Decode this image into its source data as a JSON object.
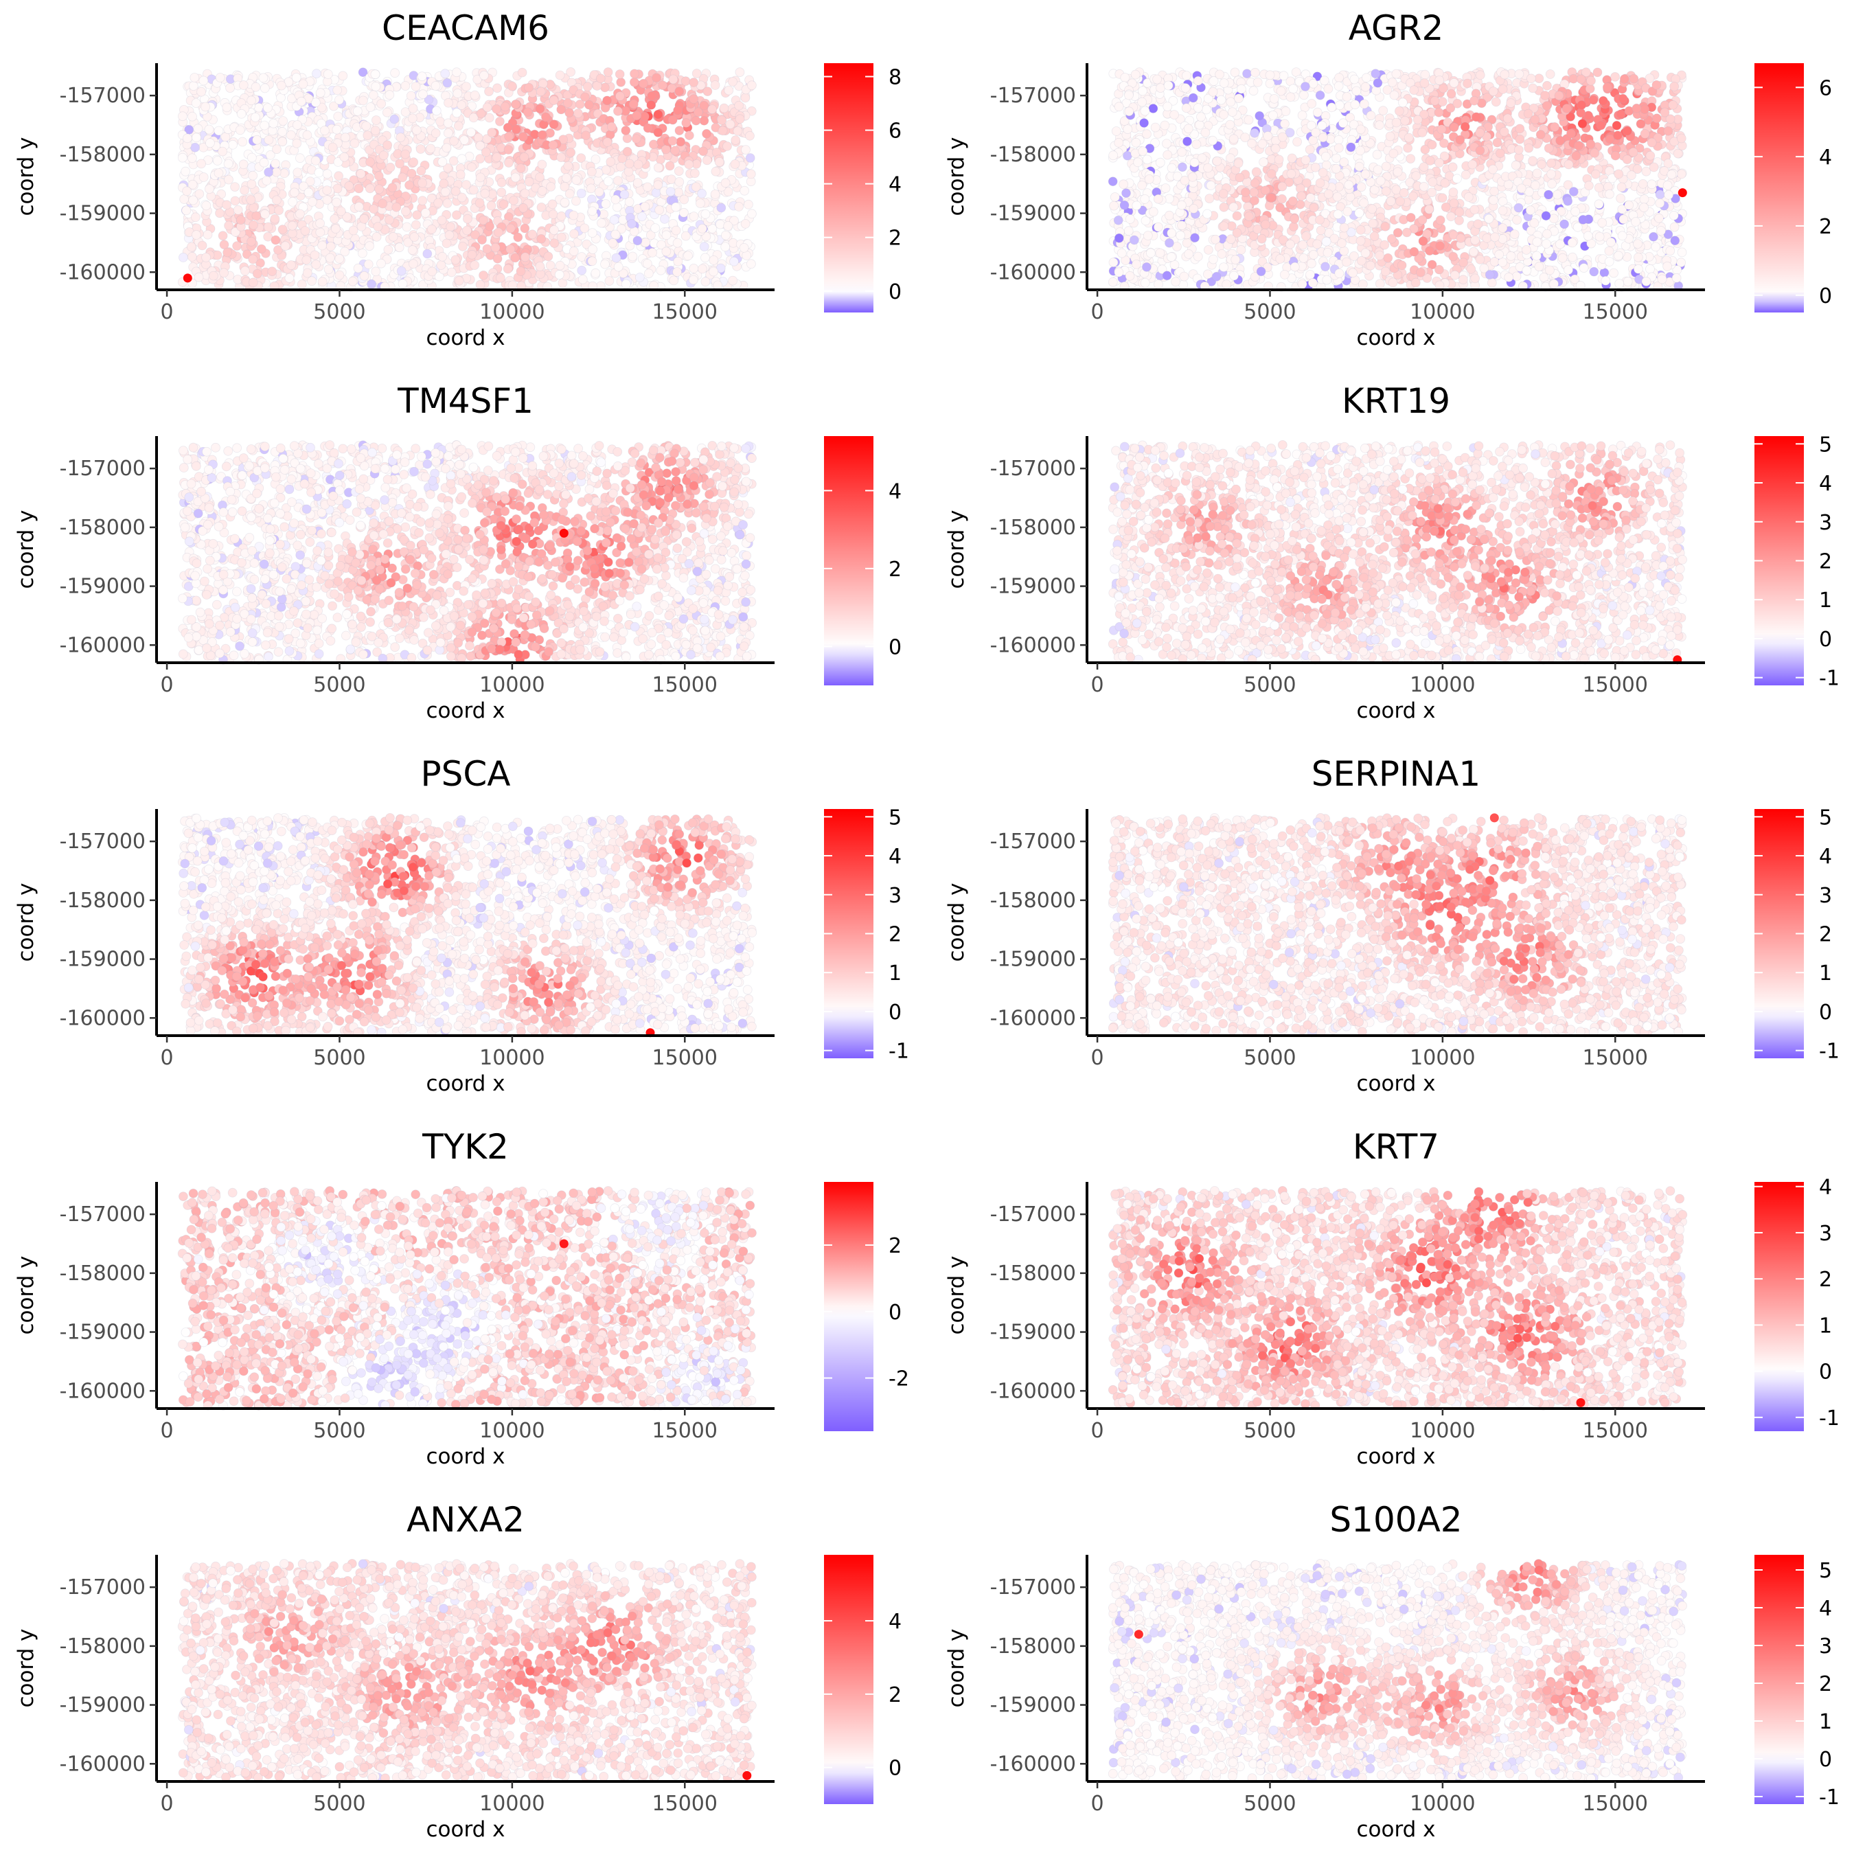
{
  "figure": {
    "background": "#ffffff"
  },
  "colors": {
    "high": "#ff0000",
    "mid": "#ffffff",
    "low": "#7f5fff"
  },
  "chart_data": [
    {
      "type": "scatter",
      "title": "CEACAM6",
      "xlabel": "coord x",
      "ylabel": "coord y",
      "xlim": [
        -300,
        17600
      ],
      "ylim": [
        -160300,
        -156450
      ],
      "x_ticks": [
        0,
        5000,
        10000,
        15000
      ],
      "x_tick_labels": [
        "0",
        "5000",
        "10000",
        "15000"
      ],
      "y_ticks": [
        -157000,
        -158000,
        -159000,
        -160000
      ],
      "y_tick_labels": [
        "-157000",
        "-158000",
        "-159000",
        "-160000"
      ],
      "color_scale": {
        "min": -0.8,
        "max": 8.5,
        "ticks": [
          0,
          2,
          4,
          6,
          8
        ],
        "labels": [
          "0",
          "2",
          "4",
          "6",
          "8"
        ]
      },
      "points_summary": {
        "x_range": [
          450,
          16950
        ],
        "y_range": [
          -160250,
          -156600
        ],
        "background_level": 0.3,
        "hotspots": [
          {
            "x": 10500,
            "y": -157500,
            "v": 3.5
          },
          {
            "x": 13500,
            "y": -157200,
            "v": 3.2
          },
          {
            "x": 15000,
            "y": -157500,
            "v": 3.0
          },
          {
            "x": 6500,
            "y": -158500,
            "v": 2.0
          },
          {
            "x": 2500,
            "y": -159500,
            "v": 2.0
          },
          {
            "x": 9800,
            "y": -159500,
            "v": 2.5
          }
        ],
        "max_point": {
          "x": 600,
          "y": -160100,
          "v": 8.2
        }
      }
    },
    {
      "type": "scatter",
      "title": "AGR2",
      "xlabel": "coord x",
      "ylabel": "coord y",
      "xlim": [
        -300,
        17600
      ],
      "ylim": [
        -160300,
        -156450
      ],
      "x_ticks": [
        0,
        5000,
        10000,
        15000
      ],
      "x_tick_labels": [
        "0",
        "5000",
        "10000",
        "15000"
      ],
      "y_ticks": [
        -157000,
        -158000,
        -159000,
        -160000
      ],
      "y_tick_labels": [
        "-157000",
        "-158000",
        "-159000",
        "-160000"
      ],
      "color_scale": {
        "min": -0.5,
        "max": 6.7,
        "ticks": [
          0,
          2,
          4,
          6
        ],
        "labels": [
          "0",
          "2",
          "4",
          "6"
        ]
      },
      "points_summary": {
        "x_range": [
          450,
          16950
        ],
        "y_range": [
          -160250,
          -156600
        ],
        "background_level": 0.2,
        "hotspots": [
          {
            "x": 14000,
            "y": -157400,
            "v": 3.2
          },
          {
            "x": 15500,
            "y": -157300,
            "v": 3.0
          },
          {
            "x": 10500,
            "y": -157500,
            "v": 2.8
          },
          {
            "x": 9500,
            "y": -159500,
            "v": 2.5
          },
          {
            "x": 5000,
            "y": -158800,
            "v": 2.0
          }
        ],
        "max_point": {
          "x": 16950,
          "y": -158650,
          "v": 6.5
        }
      }
    },
    {
      "type": "scatter",
      "title": "TM4SF1",
      "xlabel": "coord x",
      "ylabel": "coord y",
      "xlim": [
        -300,
        17600
      ],
      "ylim": [
        -160300,
        -156450
      ],
      "x_ticks": [
        0,
        5000,
        10000,
        15000
      ],
      "x_tick_labels": [
        "0",
        "5000",
        "10000",
        "15000"
      ],
      "y_ticks": [
        -157000,
        -158000,
        -159000,
        -160000
      ],
      "y_tick_labels": [
        "-157000",
        "-158000",
        "-159000",
        "-160000"
      ],
      "color_scale": {
        "min": -1.0,
        "max": 5.4,
        "ticks": [
          0,
          2,
          4
        ],
        "labels": [
          "0",
          "2",
          "4"
        ]
      },
      "points_summary": {
        "x_range": [
          450,
          16950
        ],
        "y_range": [
          -160250,
          -156600
        ],
        "background_level": 0.3,
        "hotspots": [
          {
            "x": 10000,
            "y": -158000,
            "v": 2.8
          },
          {
            "x": 12500,
            "y": -158500,
            "v": 2.5
          },
          {
            "x": 14500,
            "y": -157300,
            "v": 2.6
          },
          {
            "x": 10000,
            "y": -160000,
            "v": 2.8
          },
          {
            "x": 6500,
            "y": -158800,
            "v": 2.0
          }
        ],
        "max_point": {
          "x": 11500,
          "y": -158100,
          "v": 5.2
        }
      }
    },
    {
      "type": "scatter",
      "title": "KRT19",
      "xlabel": "coord x",
      "ylabel": "coord y",
      "xlim": [
        -300,
        17600
      ],
      "ylim": [
        -160300,
        -156450
      ],
      "x_ticks": [
        0,
        5000,
        10000,
        15000
      ],
      "x_tick_labels": [
        "0",
        "5000",
        "10000",
        "15000"
      ],
      "y_ticks": [
        -157000,
        -158000,
        -159000,
        -160000
      ],
      "y_tick_labels": [
        "-157000",
        "-158000",
        "-159000",
        "-160000"
      ],
      "color_scale": {
        "min": -1.2,
        "max": 5.2,
        "ticks": [
          -1,
          0,
          1,
          2,
          3,
          4,
          5
        ],
        "labels": [
          "-1",
          "0",
          "1",
          "2",
          "3",
          "4",
          "5"
        ]
      },
      "points_summary": {
        "x_range": [
          450,
          16950
        ],
        "y_range": [
          -160250,
          -156600
        ],
        "background_level": 0.4,
        "hotspots": [
          {
            "x": 10000,
            "y": -158000,
            "v": 2.2
          },
          {
            "x": 12000,
            "y": -159000,
            "v": 2.2
          },
          {
            "x": 14500,
            "y": -157500,
            "v": 2.0
          },
          {
            "x": 6500,
            "y": -159000,
            "v": 1.8
          },
          {
            "x": 3000,
            "y": -158000,
            "v": 1.6
          }
        ],
        "max_point": {
          "x": 16800,
          "y": -160250,
          "v": 5.0
        }
      }
    },
    {
      "type": "scatter",
      "title": "PSCA",
      "xlabel": "coord x",
      "ylabel": "coord y",
      "xlim": [
        -300,
        17600
      ],
      "ylim": [
        -160300,
        -156450
      ],
      "x_ticks": [
        0,
        5000,
        10000,
        15000
      ],
      "x_tick_labels": [
        "0",
        "5000",
        "10000",
        "15000"
      ],
      "y_ticks": [
        -157000,
        -158000,
        -159000,
        -160000
      ],
      "y_tick_labels": [
        "-157000",
        "-158000",
        "-159000",
        "-160000"
      ],
      "color_scale": {
        "min": -1.2,
        "max": 5.2,
        "ticks": [
          -1,
          0,
          1,
          2,
          3,
          4,
          5
        ],
        "labels": [
          "-1",
          "0",
          "1",
          "2",
          "3",
          "4",
          "5"
        ]
      },
      "points_summary": {
        "x_range": [
          450,
          16950
        ],
        "y_range": [
          -160250,
          -156600
        ],
        "background_level": 0.2,
        "hotspots": [
          {
            "x": 6600,
            "y": -157500,
            "v": 3.2
          },
          {
            "x": 2500,
            "y": -159300,
            "v": 3.0
          },
          {
            "x": 5500,
            "y": -159300,
            "v": 2.8
          },
          {
            "x": 15000,
            "y": -157300,
            "v": 3.0
          },
          {
            "x": 11000,
            "y": -159500,
            "v": 2.5
          }
        ],
        "max_point": {
          "x": 14000,
          "y": -160250,
          "v": 5.0
        }
      }
    },
    {
      "type": "scatter",
      "title": "SERPINA1",
      "xlabel": "coord x",
      "ylabel": "coord y",
      "xlim": [
        -300,
        17600
      ],
      "ylim": [
        -160300,
        -156450
      ],
      "x_ticks": [
        0,
        5000,
        10000,
        15000
      ],
      "x_tick_labels": [
        "0",
        "5000",
        "10000",
        "15000"
      ],
      "y_ticks": [
        -157000,
        -158000,
        -159000,
        -160000
      ],
      "y_tick_labels": [
        "-157000",
        "-158000",
        "-159000",
        "-160000"
      ],
      "color_scale": {
        "min": -1.2,
        "max": 5.2,
        "ticks": [
          -1,
          0,
          1,
          2,
          3,
          4,
          5
        ],
        "labels": [
          "-1",
          "0",
          "1",
          "2",
          "3",
          "4",
          "5"
        ]
      },
      "points_summary": {
        "x_range": [
          450,
          16950
        ],
        "y_range": [
          -160250,
          -156600
        ],
        "background_level": 0.5,
        "hotspots": [
          {
            "x": 10000,
            "y": -158300,
            "v": 2.2
          },
          {
            "x": 12500,
            "y": -159000,
            "v": 2.2
          },
          {
            "x": 11500,
            "y": -157500,
            "v": 2.0
          },
          {
            "x": 8500,
            "y": -157300,
            "v": 1.8
          }
        ],
        "max_point": {
          "x": 11500,
          "y": -156600,
          "v": 3.5
        }
      }
    },
    {
      "type": "scatter",
      "title": "TYK2",
      "xlabel": "coord x",
      "ylabel": "coord y",
      "xlim": [
        -300,
        17600
      ],
      "ylim": [
        -160300,
        -156450
      ],
      "x_ticks": [
        0,
        5000,
        10000,
        15000
      ],
      "x_tick_labels": [
        "0",
        "5000",
        "10000",
        "15000"
      ],
      "y_ticks": [
        -157000,
        -158000,
        -159000,
        -160000
      ],
      "y_tick_labels": [
        "-157000",
        "-158000",
        "-159000",
        "-160000"
      ],
      "color_scale": {
        "min": -3.6,
        "max": 3.9,
        "ticks": [
          -2,
          0,
          2
        ],
        "labels": [
          "-2",
          "0",
          "2"
        ]
      },
      "points_summary": {
        "x_range": [
          450,
          16950
        ],
        "y_range": [
          -160250,
          -156600
        ],
        "background_level": 0.9,
        "cold_regions": [
          {
            "x": 4500,
            "y": -157800,
            "v": -1.6
          },
          {
            "x": 6500,
            "y": -159800,
            "v": -2.0
          },
          {
            "x": 8300,
            "y": -158800,
            "v": -1.6
          },
          {
            "x": 15500,
            "y": -159800,
            "v": -1.6
          },
          {
            "x": 14200,
            "y": -157200,
            "v": -1.2
          }
        ],
        "max_point": {
          "x": 11500,
          "y": -157500,
          "v": 3.5
        }
      }
    },
    {
      "type": "scatter",
      "title": "KRT7",
      "xlabel": "coord x",
      "ylabel": "coord y",
      "xlim": [
        -300,
        17600
      ],
      "ylim": [
        -160300,
        -156450
      ],
      "x_ticks": [
        0,
        5000,
        10000,
        15000
      ],
      "x_tick_labels": [
        "0",
        "5000",
        "10000",
        "15000"
      ],
      "y_ticks": [
        -157000,
        -158000,
        -159000,
        -160000
      ],
      "y_tick_labels": [
        "-157000",
        "-158000",
        "-159000",
        "-160000"
      ],
      "color_scale": {
        "min": -1.3,
        "max": 4.1,
        "ticks": [
          -1,
          0,
          1,
          2,
          3,
          4
        ],
        "labels": [
          "-1",
          "0",
          "1",
          "2",
          "3",
          "4"
        ]
      },
      "points_summary": {
        "x_range": [
          450,
          16950
        ],
        "y_range": [
          -160250,
          -156600
        ],
        "background_level": 0.6,
        "hotspots": [
          {
            "x": 2500,
            "y": -158000,
            "v": 1.9
          },
          {
            "x": 5500,
            "y": -159200,
            "v": 1.9
          },
          {
            "x": 9500,
            "y": -158000,
            "v": 2.0
          },
          {
            "x": 12500,
            "y": -159000,
            "v": 2.0
          },
          {
            "x": 11500,
            "y": -157000,
            "v": 2.0
          }
        ],
        "max_point": {
          "x": 14000,
          "y": -160200,
          "v": 3.8
        }
      }
    },
    {
      "type": "scatter",
      "title": "ANXA2",
      "xlabel": "coord x",
      "ylabel": "coord y",
      "xlim": [
        -300,
        17600
      ],
      "ylim": [
        -160300,
        -156450
      ],
      "x_ticks": [
        0,
        5000,
        10000,
        15000
      ],
      "x_tick_labels": [
        "0",
        "5000",
        "10000",
        "15000"
      ],
      "y_ticks": [
        -157000,
        -158000,
        -159000,
        -160000
      ],
      "y_tick_labels": [
        "-157000",
        "-158000",
        "-159000",
        "-160000"
      ],
      "color_scale": {
        "min": -1.0,
        "max": 5.8,
        "ticks": [
          0,
          2,
          4
        ],
        "labels": [
          "0",
          "2",
          "4"
        ]
      },
      "points_summary": {
        "x_range": [
          450,
          16950
        ],
        "y_range": [
          -160250,
          -156600
        ],
        "background_level": 0.7,
        "hotspots": [
          {
            "x": 10500,
            "y": -158500,
            "v": 2.2
          },
          {
            "x": 13000,
            "y": -158000,
            "v": 2.3
          },
          {
            "x": 7000,
            "y": -158800,
            "v": 1.8
          },
          {
            "x": 3500,
            "y": -157800,
            "v": 1.7
          }
        ],
        "max_point": {
          "x": 16800,
          "y": -160200,
          "v": 5.5
        }
      }
    },
    {
      "type": "scatter",
      "title": "S100A2",
      "xlabel": "coord x",
      "ylabel": "coord y",
      "xlim": [
        -300,
        17600
      ],
      "ylim": [
        -160300,
        -156450
      ],
      "x_ticks": [
        0,
        5000,
        10000,
        15000
      ],
      "x_tick_labels": [
        "0",
        "5000",
        "10000",
        "15000"
      ],
      "y_ticks": [
        -157000,
        -158000,
        -159000,
        -160000
      ],
      "y_tick_labels": [
        "-157000",
        "-158000",
        "-159000",
        "-160000"
      ],
      "color_scale": {
        "min": -1.2,
        "max": 5.4,
        "ticks": [
          -1,
          0,
          1,
          2,
          3,
          4,
          5
        ],
        "labels": [
          "-1",
          "0",
          "1",
          "2",
          "3",
          "4",
          "5"
        ]
      },
      "points_summary": {
        "x_range": [
          450,
          16950
        ],
        "y_range": [
          -160250,
          -156600
        ],
        "background_level": 0.2,
        "hotspots": [
          {
            "x": 12500,
            "y": -156800,
            "v": 2.5
          },
          {
            "x": 6500,
            "y": -158800,
            "v": 2.2
          },
          {
            "x": 9800,
            "y": -159000,
            "v": 2.2
          },
          {
            "x": 13800,
            "y": -158800,
            "v": 2.2
          }
        ],
        "max_point": {
          "x": 1200,
          "y": -157800,
          "v": 4.5
        }
      }
    }
  ]
}
